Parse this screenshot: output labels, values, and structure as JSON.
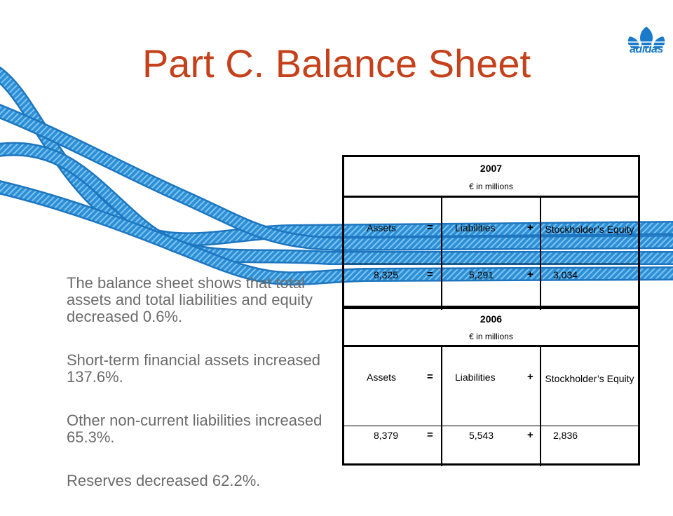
{
  "slide": {
    "title": "Part C. Balance Sheet",
    "logo": {
      "icon": "adidas-trefoil-icon",
      "text": "adidas",
      "color": "#1a7ac9"
    },
    "title_color": "#c4411b",
    "bullets": [
      "The balance sheet shows that total assets and total liabilities and equity decreased 0.6%.",
      "Short-term financial assets increased 137.6%.",
      "Other non-current liabilities increased 65.3%.",
      "Reserves decreased 62.2%."
    ],
    "tables": [
      {
        "year": "2007",
        "unit": "€ in millions",
        "headers": {
          "assets": "Assets",
          "eq": "=",
          "liabilities": "Liabilities",
          "plus": "+",
          "equity": "Stockholder’s Equity"
        },
        "values": {
          "assets": "8,325",
          "eq": "=",
          "liabilities": "5,291",
          "plus": "+",
          "equity": "3,034"
        }
      },
      {
        "year": "2006",
        "unit": "€ in millions",
        "headers": {
          "assets": "Assets",
          "eq": "=",
          "liabilities": "Liabilities",
          "plus": "+",
          "equity": "Stockholder’s Equity"
        },
        "values": {
          "assets": "8,379",
          "eq": "=",
          "liabilities": "5,543",
          "plus": "+",
          "equity": "2,836"
        }
      }
    ]
  }
}
